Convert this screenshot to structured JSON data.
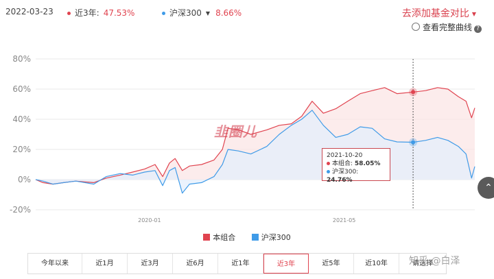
{
  "header": {
    "date": "2022-03-23",
    "series_a_label": "近3年:",
    "series_a_value": "47.53%",
    "series_b_label": "沪深300",
    "series_b_value": "8.66%",
    "add_compare": "去添加基金对比",
    "full_curve": "查看完整曲线"
  },
  "colors": {
    "red": "#e0434f",
    "blue": "#3f9be8",
    "red_fill": "#fbe6e6",
    "blue_fill": "#e4effc"
  },
  "tooltip": {
    "date": "2021-10-20",
    "a_label": "本组合:",
    "a_value": "58.05%",
    "b_label": "沪深300:",
    "b_value": "24.76%"
  },
  "legend": {
    "a": "本组合",
    "b": "沪深300"
  },
  "range_tabs": [
    "今年以来",
    "近1月",
    "近3月",
    "近6月",
    "近1年",
    "近3年",
    "近5年",
    "近10年",
    "请选择"
  ],
  "active_range": "近3年",
  "watermark": "韭圈儿",
  "site_mark": "知乎 @白泽",
  "chart_data": {
    "type": "line",
    "x_ticks": [
      "2020-01",
      "2021-05"
    ],
    "y_ticks": [
      "80%",
      "60%",
      "40%",
      "20%",
      "0%",
      "-20%"
    ],
    "ylim": [
      -20,
      80
    ],
    "xlim": [
      "2019-03-23",
      "2022-03-23"
    ],
    "grid": true,
    "highlight_date": "2021-10-20",
    "series": [
      {
        "name": "本组合",
        "color": "#e0434f",
        "points": [
          [
            "2019-03-23",
            0
          ],
          [
            "2019-04-10",
            -2
          ],
          [
            "2019-05-05",
            -3
          ],
          [
            "2019-06-01",
            -2
          ],
          [
            "2019-07-01",
            -1
          ],
          [
            "2019-08-15",
            -2
          ],
          [
            "2019-09-15",
            1
          ],
          [
            "2019-10-20",
            3
          ],
          [
            "2019-11-20",
            5
          ],
          [
            "2019-12-20",
            7
          ],
          [
            "2020-01-15",
            10
          ],
          [
            "2020-02-03",
            2
          ],
          [
            "2020-02-20",
            11
          ],
          [
            "2020-03-05",
            14
          ],
          [
            "2020-03-23",
            6
          ],
          [
            "2020-04-10",
            9
          ],
          [
            "2020-05-10",
            10
          ],
          [
            "2020-06-10",
            13
          ],
          [
            "2020-07-01",
            20
          ],
          [
            "2020-07-15",
            34
          ],
          [
            "2020-08-10",
            33
          ],
          [
            "2020-09-10",
            30
          ],
          [
            "2020-10-20",
            33
          ],
          [
            "2020-11-20",
            36
          ],
          [
            "2020-12-20",
            37
          ],
          [
            "2021-01-15",
            42
          ],
          [
            "2021-02-10",
            52
          ],
          [
            "2021-03-10",
            44
          ],
          [
            "2021-04-10",
            47
          ],
          [
            "2021-05-10",
            52
          ],
          [
            "2021-06-10",
            57
          ],
          [
            "2021-07-10",
            59
          ],
          [
            "2021-08-10",
            61
          ],
          [
            "2021-09-10",
            57
          ],
          [
            "2021-10-20",
            58.05
          ],
          [
            "2021-11-20",
            59
          ],
          [
            "2021-12-20",
            61
          ],
          [
            "2022-01-15",
            60
          ],
          [
            "2022-02-10",
            55
          ],
          [
            "2022-03-01",
            52
          ],
          [
            "2022-03-15",
            41
          ],
          [
            "2022-03-23",
            47.53
          ]
        ]
      },
      {
        "name": "沪深300",
        "color": "#3f9be8",
        "points": [
          [
            "2019-03-23",
            0
          ],
          [
            "2019-04-10",
            -1
          ],
          [
            "2019-05-05",
            -3
          ],
          [
            "2019-06-01",
            -2
          ],
          [
            "2019-07-01",
            -1
          ],
          [
            "2019-08-15",
            -3
          ],
          [
            "2019-09-15",
            2
          ],
          [
            "2019-10-20",
            4
          ],
          [
            "2019-11-20",
            3
          ],
          [
            "2019-12-20",
            5
          ],
          [
            "2020-01-15",
            6
          ],
          [
            "2020-02-03",
            -4
          ],
          [
            "2020-02-20",
            6
          ],
          [
            "2020-03-05",
            8
          ],
          [
            "2020-03-23",
            -9
          ],
          [
            "2020-04-10",
            -3
          ],
          [
            "2020-05-10",
            -2
          ],
          [
            "2020-06-10",
            2
          ],
          [
            "2020-07-01",
            10
          ],
          [
            "2020-07-15",
            20
          ],
          [
            "2020-08-10",
            19
          ],
          [
            "2020-09-10",
            17
          ],
          [
            "2020-10-20",
            22
          ],
          [
            "2020-11-20",
            30
          ],
          [
            "2020-12-20",
            36
          ],
          [
            "2021-01-15",
            40
          ],
          [
            "2021-02-10",
            46
          ],
          [
            "2021-03-10",
            36
          ],
          [
            "2021-04-10",
            28
          ],
          [
            "2021-05-10",
            30
          ],
          [
            "2021-06-10",
            35
          ],
          [
            "2021-07-10",
            34
          ],
          [
            "2021-08-10",
            27
          ],
          [
            "2021-09-10",
            25
          ],
          [
            "2021-10-20",
            24.76
          ],
          [
            "2021-11-20",
            26
          ],
          [
            "2021-12-20",
            28
          ],
          [
            "2022-01-15",
            26
          ],
          [
            "2022-02-10",
            22
          ],
          [
            "2022-03-01",
            17
          ],
          [
            "2022-03-15",
            1
          ],
          [
            "2022-03-23",
            8.66
          ]
        ]
      }
    ]
  }
}
